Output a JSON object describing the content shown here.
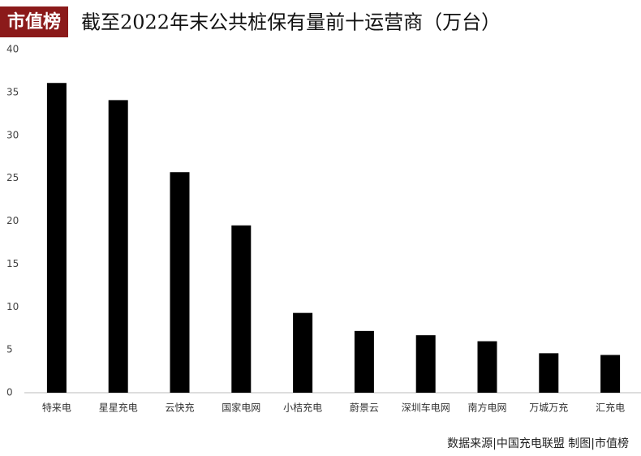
{
  "chart_data": {
    "type": "bar",
    "logo": "市值榜",
    "title": "截至2022年末公共桩保有量前十运营商（万台）",
    "categories": [
      "特来电",
      "星星充电",
      "云快充",
      "国家电网",
      "小桔充电",
      "蔚景云",
      "深圳车电网",
      "南方电网",
      "万城万充",
      "汇充电"
    ],
    "values": [
      36.1,
      34.1,
      25.7,
      19.5,
      9.3,
      7.2,
      6.7,
      6.0,
      4.6,
      4.4
    ],
    "color": "#000000",
    "ylim": [
      0,
      40
    ],
    "yticks": [
      0,
      5,
      10,
      15,
      20,
      25,
      30,
      35,
      40
    ],
    "grid": false,
    "source": "数据来源|中国充电联盟   制图|市值榜"
  }
}
